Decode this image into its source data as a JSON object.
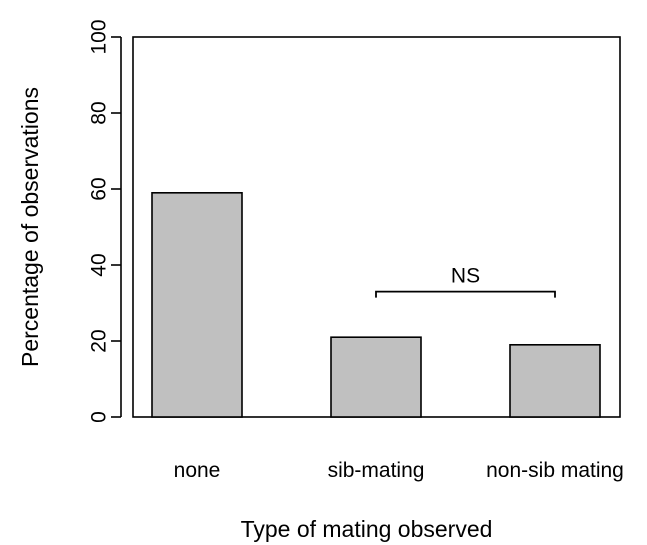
{
  "chart_data": {
    "type": "bar",
    "categories": [
      "none",
      "sib-mating",
      "non-sib mating"
    ],
    "values": [
      59,
      21,
      19
    ],
    "xlabel": "Type of mating observed",
    "ylabel": "Percentage of observations",
    "ylim": [
      0,
      100
    ],
    "yticks": [
      0,
      20,
      40,
      60,
      80,
      100
    ],
    "ytick_labels": [
      "0",
      "20",
      "40",
      "60",
      "80",
      "100"
    ],
    "grid": false,
    "bar_color": "#c0c0c0",
    "annotations": [
      {
        "text": "NS",
        "from_category": 1,
        "to_category": 2,
        "y": 33
      }
    ]
  }
}
